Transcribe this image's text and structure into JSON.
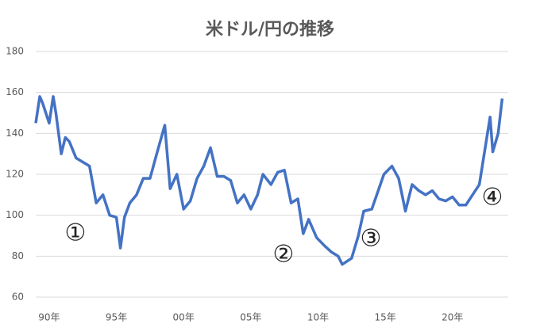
{
  "chart_data": {
    "type": "line",
    "title": "米ドル/円の推移",
    "x": [
      1989.0,
      1989.3,
      1989.5,
      1990.0,
      1990.3,
      1990.5,
      1990.9,
      1991.2,
      1991.5,
      1992.0,
      1992.5,
      1993.0,
      1993.5,
      1994.0,
      1994.5,
      1995.0,
      1995.3,
      1995.6,
      1996.0,
      1996.5,
      1997.0,
      1997.5,
      1998.0,
      1998.6,
      1999.0,
      1999.5,
      2000.0,
      2000.5,
      2001.0,
      2001.5,
      2002.0,
      2002.5,
      2003.0,
      2003.5,
      2004.0,
      2004.5,
      2005.0,
      2005.5,
      2005.9,
      2006.5,
      2007.0,
      2007.5,
      2008.0,
      2008.5,
      2008.9,
      2009.3,
      2009.9,
      2010.5,
      2011.0,
      2011.5,
      2011.8,
      2012.5,
      2013.0,
      2013.4,
      2014.0,
      2014.9,
      2015.5,
      2016.0,
      2016.5,
      2017.0,
      2017.5,
      2018.0,
      2018.5,
      2019.0,
      2019.5,
      2020.0,
      2020.5,
      2021.0,
      2021.5,
      2022.0,
      2022.8,
      2023.0,
      2023.4,
      2023.7
    ],
    "series": [
      {
        "name": "USD/JPY",
        "color": "#4472c4",
        "values": [
          145,
          158,
          155,
          145,
          158,
          150,
          130,
          138,
          136,
          128,
          126,
          124,
          106,
          110,
          100,
          99,
          84,
          99,
          106,
          110,
          118,
          118,
          130,
          144,
          113,
          120,
          103,
          107,
          118,
          124,
          133,
          119,
          119,
          117,
          106,
          110,
          103,
          110,
          120,
          115,
          121,
          122,
          106,
          108,
          91,
          98,
          89,
          85,
          82,
          80,
          76,
          79,
          90,
          102,
          103,
          120,
          124,
          118,
          102,
          115,
          112,
          110,
          112,
          108,
          107,
          109,
          105,
          105,
          110,
          115,
          148,
          131,
          140,
          157
        ]
      }
    ],
    "xlim": [
      1989,
      2024.15
    ],
    "xticks": [
      {
        "value": 1990,
        "label": "90年"
      },
      {
        "value": 1995,
        "label": "95年"
      },
      {
        "value": 2000,
        "label": "00年"
      },
      {
        "value": 2005,
        "label": "05年"
      },
      {
        "value": 2010,
        "label": "10年"
      },
      {
        "value": 2015,
        "label": "15年"
      },
      {
        "value": 2020,
        "label": "20年"
      }
    ],
    "ylim": [
      60,
      180
    ],
    "yticks": [
      60,
      80,
      100,
      120,
      140,
      160,
      180
    ],
    "grid": true,
    "annotations": [
      "①",
      "②",
      "③",
      "④"
    ]
  }
}
